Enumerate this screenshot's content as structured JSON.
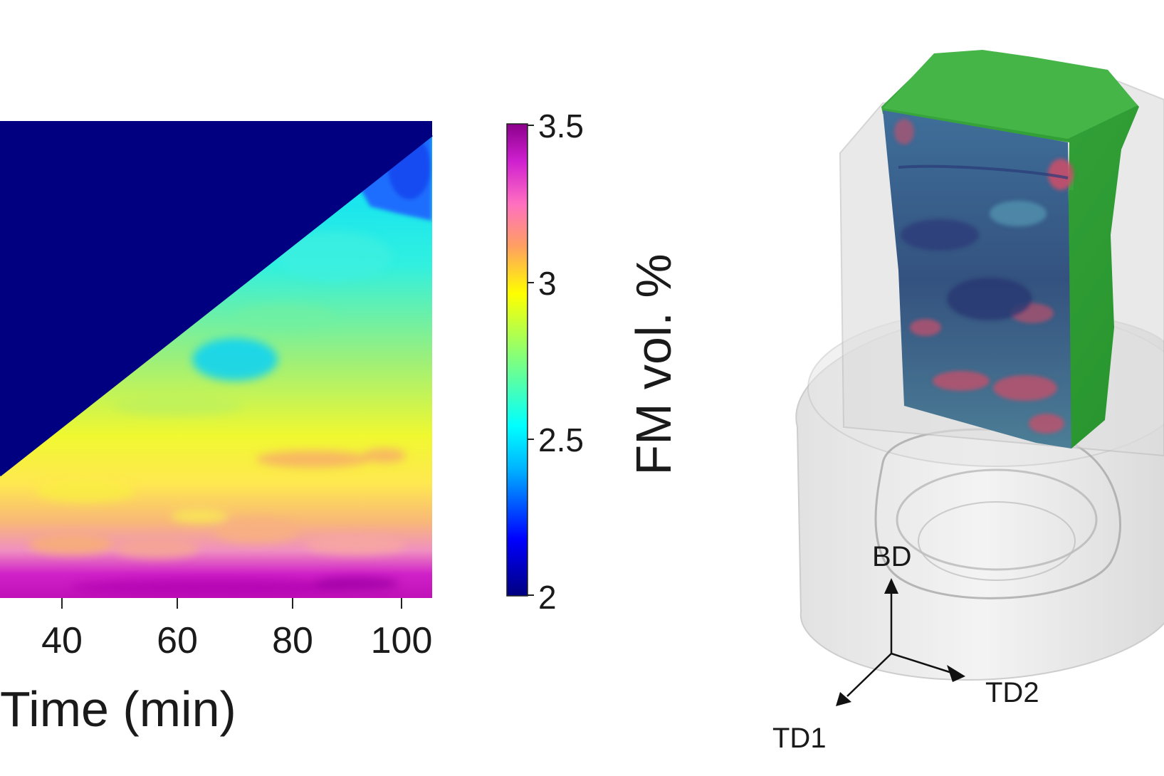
{
  "chart_data": {
    "type": "heatmap",
    "xlabel": "Time (min)",
    "x_ticks": [
      40,
      60,
      80,
      100
    ],
    "xlim": [
      29.5,
      105
    ],
    "colorbar": {
      "label": "FM vol. %",
      "ticks": [
        "3.5",
        "3",
        "2.5",
        "2"
      ],
      "range": [
        2,
        3.5
      ],
      "colormap": [
        "#000080",
        "#0000ff",
        "#00b4ff",
        "#00ffff",
        "#7fff7f",
        "#ffff00",
        "#ffa060",
        "#ff70c0",
        "#d020d0",
        "#8b008b"
      ]
    },
    "masked_color": "#000080",
    "mask": "upper-left triangle above diagonal",
    "bands": [
      {
        "position": "bottom",
        "value": 3.4
      },
      {
        "position": "lower",
        "value": 3.1
      },
      {
        "position": "lower-middle",
        "value": 2.95
      },
      {
        "position": "middle",
        "value": 2.75
      },
      {
        "position": "upper-middle",
        "value": 2.6
      },
      {
        "position": "top",
        "value": 2.45
      },
      {
        "position": "top-right corner",
        "value": 2.25
      }
    ]
  },
  "diagram": {
    "axes": {
      "up": "BD",
      "right": "TD2",
      "left": "TD1"
    },
    "colors": {
      "surface": "#2fae3a",
      "section": "#4f8fa8",
      "hotspot": "#c8506a",
      "shell": "#cfcfcf"
    }
  }
}
